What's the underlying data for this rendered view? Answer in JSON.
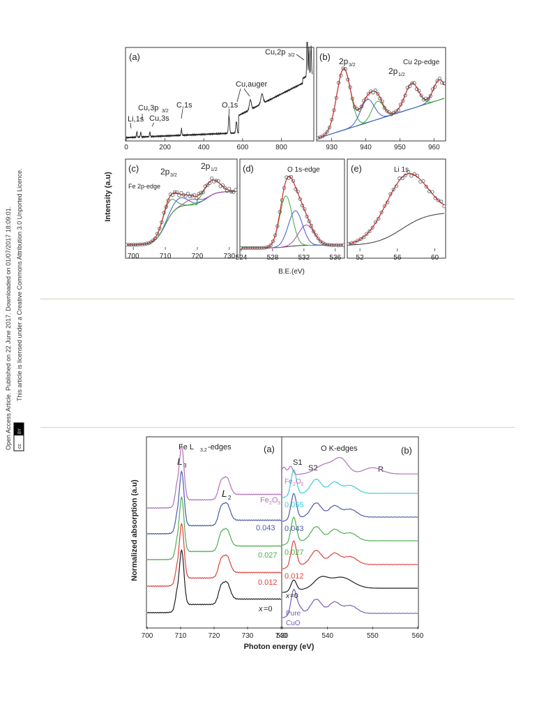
{
  "sidebar": {
    "line1": "Open Access Article. Published on 22 June 2017. Downloaded on 01/07/2017 18:09:01.",
    "line2": "This article is licensed under a Creative Commons Attribution 3.0 Unported Licence.",
    "cc_badge": "cc",
    "by_badge": "BY"
  },
  "figure_top": {
    "ylabel": "Intensity (a.u)",
    "xlabel": "B.E.(eV)",
    "panel_a": {
      "tag": "(a)",
      "ticks": [
        "0",
        "200",
        "400",
        "600",
        "800"
      ],
      "peaks": [
        "Li,1s",
        "Cu,3p",
        "3/2",
        "Cu,3s",
        "C,1s",
        "O,1s",
        "Cu,auger",
        "Cu,2p",
        "3/2"
      ]
    },
    "panel_b": {
      "tag": "(b)",
      "title": "Cu 2p-edge",
      "l1": "2p",
      "l1s": "3/2",
      "l2": "2p",
      "l2s": "1/2",
      "ticks": [
        "930",
        "940",
        "950",
        "960"
      ]
    },
    "panel_c": {
      "tag": "(c)",
      "title": "Fe 2p-edge",
      "l1": "2p",
      "l1s": "3/2",
      "l2": "2p",
      "l2s": "1/2",
      "ticks": [
        "700",
        "710",
        "720",
        "730"
      ]
    },
    "panel_d": {
      "tag": "(d)",
      "title": "O 1s-edge",
      "ticks": [
        "524",
        "528",
        "532",
        "536"
      ]
    },
    "panel_e": {
      "tag": "(e)",
      "title": "Li 1s",
      "ticks": [
        "52",
        "56",
        "60"
      ]
    }
  },
  "figure_bottom": {
    "ylabel": "Normalized absorption (a.u)",
    "xlabel": "Photon energy (eV)",
    "panel_a": {
      "tag": "(a)",
      "title": "Fe L",
      "title_sub": "3,2",
      "title_tail": "-edges",
      "l3": "L",
      "l3s": "3",
      "l2": "L",
      "l2s": "2",
      "ticks": [
        "700",
        "710",
        "720",
        "730",
        "740"
      ],
      "labels": [
        "Fe",
        "2",
        "O",
        "3",
        "0.043",
        "0.027",
        "0.012",
        "x",
        "=0"
      ]
    },
    "panel_b": {
      "tag": "(b)",
      "title": "O K-edges",
      "peaks": [
        "S1",
        "S2",
        "R"
      ],
      "ticks": [
        "530",
        "540",
        "550",
        "560"
      ],
      "labels": [
        "Fe",
        "2",
        "O",
        "3",
        "0.055",
        "0.043",
        "0.027",
        "0.012",
        "x",
        "=0",
        "Pure",
        "CuO"
      ]
    }
  },
  "colors": {
    "black": "#1e1e1e",
    "purple": "#b070b8",
    "blue": "#4a5aa8",
    "cyan": "#3ccad8",
    "green": "#4caf50",
    "red": "#e0413a",
    "violet": "#7a5ab8",
    "fit_red": "#e03030",
    "fit_green": "#3aa83a",
    "fit_blue": "#3a5ad8",
    "fit_magenta": "#b040b0"
  }
}
